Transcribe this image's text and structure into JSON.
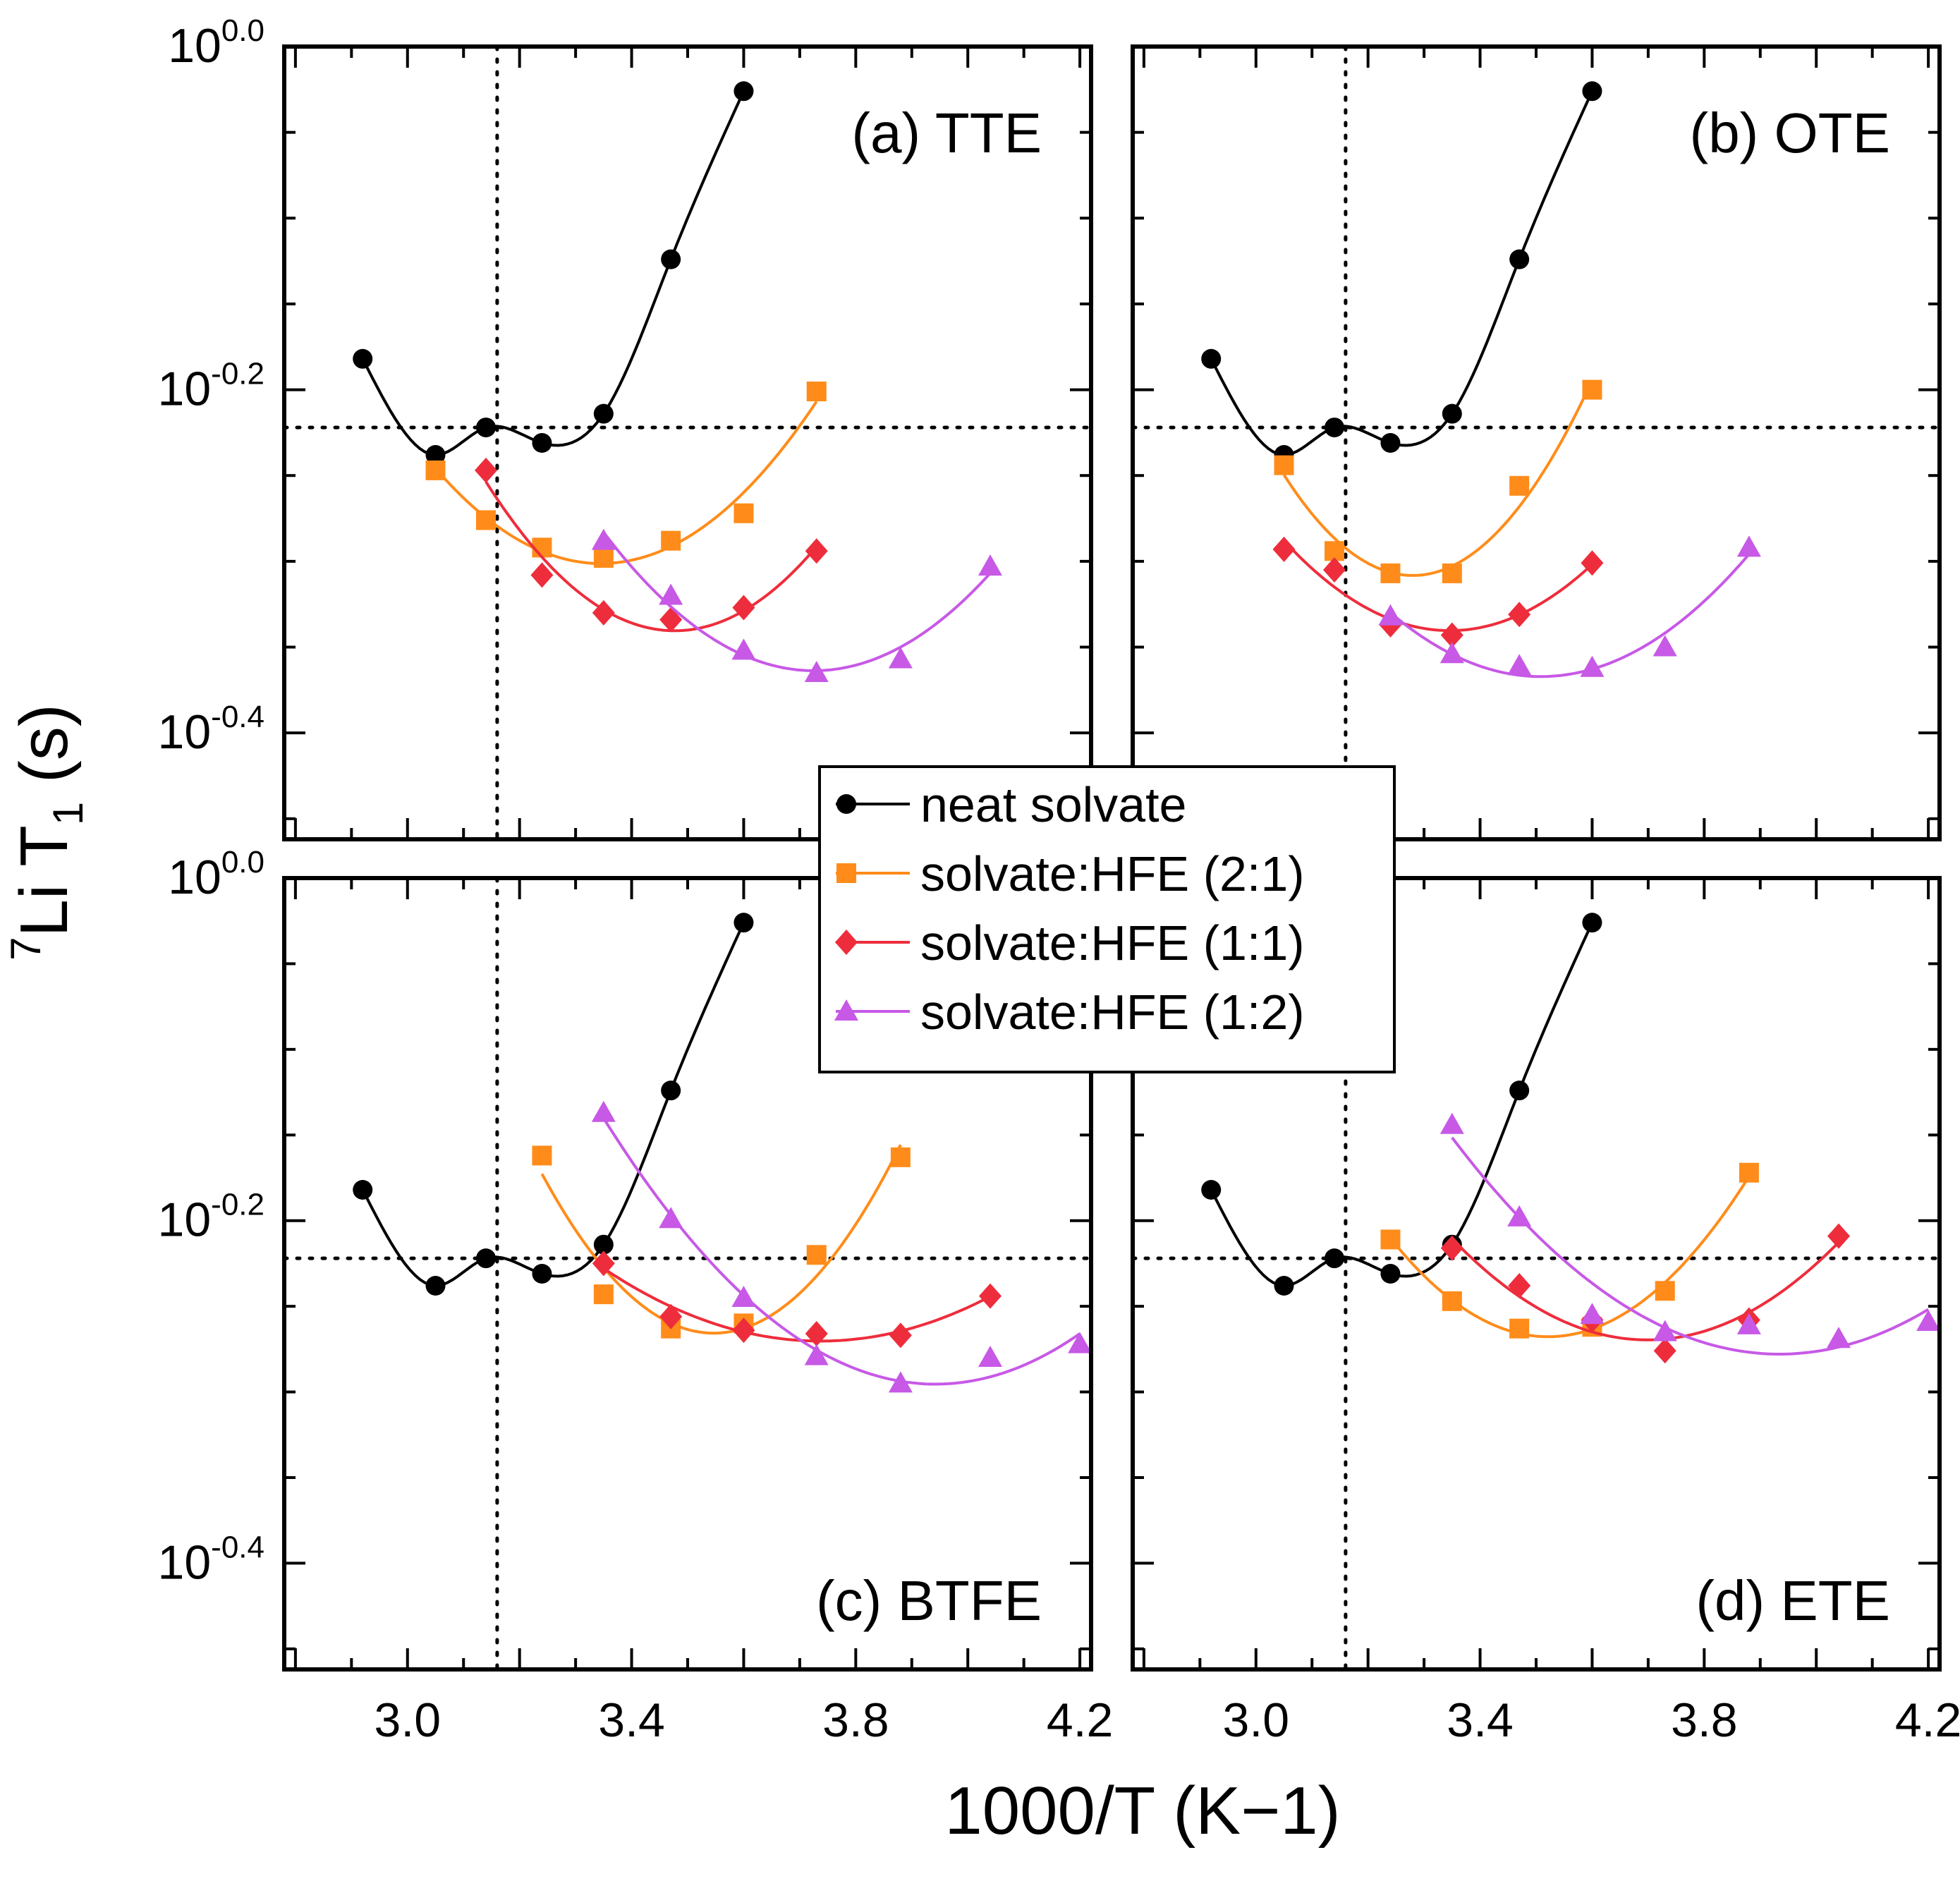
{
  "chart_data": {
    "type": "scatter",
    "layout": "2x2 panels, shared axes",
    "xlabel": "1000/T (K−1)",
    "ylabel_super": "7",
    "ylabel_main": "Li T",
    "ylabel_sub": "1",
    "ylabel_unit": " (s)",
    "y_scale": "log10",
    "xlim": [
      2.78,
      4.22
    ],
    "ylim_log10": [
      -0.462,
      0.0
    ],
    "x_ticks": [
      "3.0",
      "3.4",
      "3.8",
      "4.2"
    ],
    "y_ticks": [
      {
        "base": "10",
        "exp": "0.0",
        "log": 0.0
      },
      {
        "base": "10",
        "exp": "-0.2",
        "log": -0.2
      },
      {
        "base": "10",
        "exp": "-0.4",
        "log": -0.4
      }
    ],
    "reference_lines": {
      "x": 3.16,
      "y_log10": -0.222
    },
    "series_colors": {
      "neat": "#000000",
      "r21": "#ff8c1a",
      "r11": "#ee2d3c",
      "r12": "#c759e6"
    },
    "legend": [
      {
        "key": "neat",
        "label": "neat solvate",
        "marker": "circle"
      },
      {
        "key": "r21",
        "label": "solvate:HFE (2:1)",
        "marker": "square"
      },
      {
        "key": "r11",
        "label": "solvate:HFE (1:1)",
        "marker": "diamond"
      },
      {
        "key": "r12",
        "label": "solvate:HFE (1:2)",
        "marker": "triangle"
      }
    ],
    "panels": [
      {
        "label": "(a) TTE",
        "series": [
          {
            "key": "neat",
            "x": [
              2.92,
              3.05,
              3.14,
              3.24,
              3.35,
              3.47,
              3.6
            ],
            "y_log10": [
              -0.182,
              -0.238,
              -0.222,
              -0.231,
              -0.214,
              -0.124,
              -0.026
            ]
          },
          {
            "key": "r21",
            "x": [
              3.05,
              3.14,
              3.24,
              3.35,
              3.47,
              3.6,
              3.73
            ],
            "y_log10": [
              -0.247,
              -0.276,
              -0.292,
              -0.298,
              -0.288,
              -0.272,
              -0.201
            ]
          },
          {
            "key": "r11",
            "x": [
              3.14,
              3.24,
              3.35,
              3.47,
              3.6,
              3.73
            ],
            "y_log10": [
              -0.247,
              -0.308,
              -0.33,
              -0.334,
              -0.327,
              -0.294
            ]
          },
          {
            "key": "r12",
            "x": [
              3.35,
              3.47,
              3.6,
              3.73,
              3.88,
              4.04
            ],
            "y_log10": [
              -0.288,
              -0.32,
              -0.352,
              -0.365,
              -0.357,
              -0.303
            ]
          }
        ]
      },
      {
        "label": "(b) OTE",
        "series": [
          {
            "key": "neat",
            "x": [
              2.92,
              3.05,
              3.14,
              3.24,
              3.35,
              3.47,
              3.6
            ],
            "y_log10": [
              -0.182,
              -0.238,
              -0.222,
              -0.231,
              -0.214,
              -0.124,
              -0.026
            ]
          },
          {
            "key": "r21",
            "x": [
              3.05,
              3.14,
              3.24,
              3.35,
              3.47,
              3.6
            ],
            "y_log10": [
              -0.244,
              -0.294,
              -0.307,
              -0.307,
              -0.256,
              -0.2
            ]
          },
          {
            "key": "r11",
            "x": [
              3.05,
              3.14,
              3.24,
              3.35,
              3.47,
              3.6
            ],
            "y_log10": [
              -0.293,
              -0.305,
              -0.337,
              -0.343,
              -0.331,
              -0.301
            ]
          },
          {
            "key": "r12",
            "x": [
              3.24,
              3.35,
              3.47,
              3.6,
              3.73,
              3.88
            ],
            "y_log10": [
              -0.332,
              -0.354,
              -0.361,
              -0.362,
              -0.35,
              -0.292
            ]
          }
        ]
      },
      {
        "label": "(c) BTFE",
        "series": [
          {
            "key": "neat",
            "x": [
              2.92,
              3.05,
              3.14,
              3.24,
              3.35,
              3.47,
              3.6
            ],
            "y_log10": [
              -0.182,
              -0.238,
              -0.222,
              -0.231,
              -0.214,
              -0.124,
              -0.026
            ]
          },
          {
            "key": "r21",
            "x": [
              3.24,
              3.35,
              3.47,
              3.6,
              3.73,
              3.88
            ],
            "y_log10": [
              -0.162,
              -0.243,
              -0.263,
              -0.26,
              -0.22,
              -0.163
            ]
          },
          {
            "key": "r11",
            "x": [
              3.35,
              3.47,
              3.6,
              3.73,
              3.88,
              4.04
            ],
            "y_log10": [
              -0.225,
              -0.256,
              -0.264,
              -0.266,
              -0.267,
              -0.244
            ]
          },
          {
            "key": "r12",
            "x": [
              3.35,
              3.47,
              3.6,
              3.73,
              3.88,
              4.04,
              4.2
            ],
            "y_log10": [
              -0.137,
              -0.199,
              -0.245,
              -0.279,
              -0.295,
              -0.28,
              -0.272
            ]
          }
        ]
      },
      {
        "label": "(d) ETE",
        "series": [
          {
            "key": "neat",
            "x": [
              2.92,
              3.05,
              3.14,
              3.24,
              3.35,
              3.47,
              3.6
            ],
            "y_log10": [
              -0.182,
              -0.238,
              -0.222,
              -0.231,
              -0.214,
              -0.124,
              -0.026
            ]
          },
          {
            "key": "r21",
            "x": [
              3.24,
              3.35,
              3.47,
              3.6,
              3.73,
              3.88
            ],
            "y_log10": [
              -0.211,
              -0.247,
              -0.263,
              -0.262,
              -0.241,
              -0.172
            ]
          },
          {
            "key": "r11",
            "x": [
              3.35,
              3.47,
              3.6,
              3.73,
              3.88,
              4.04
            ],
            "y_log10": [
              -0.216,
              -0.238,
              -0.258,
              -0.276,
              -0.258,
              -0.209
            ]
          },
          {
            "key": "r12",
            "x": [
              3.35,
              3.47,
              3.6,
              3.73,
              3.88,
              4.04,
              4.2
            ],
            "y_log10": [
              -0.144,
              -0.198,
              -0.255,
              -0.265,
              -0.261,
              -0.269,
              -0.259
            ]
          }
        ]
      }
    ]
  }
}
